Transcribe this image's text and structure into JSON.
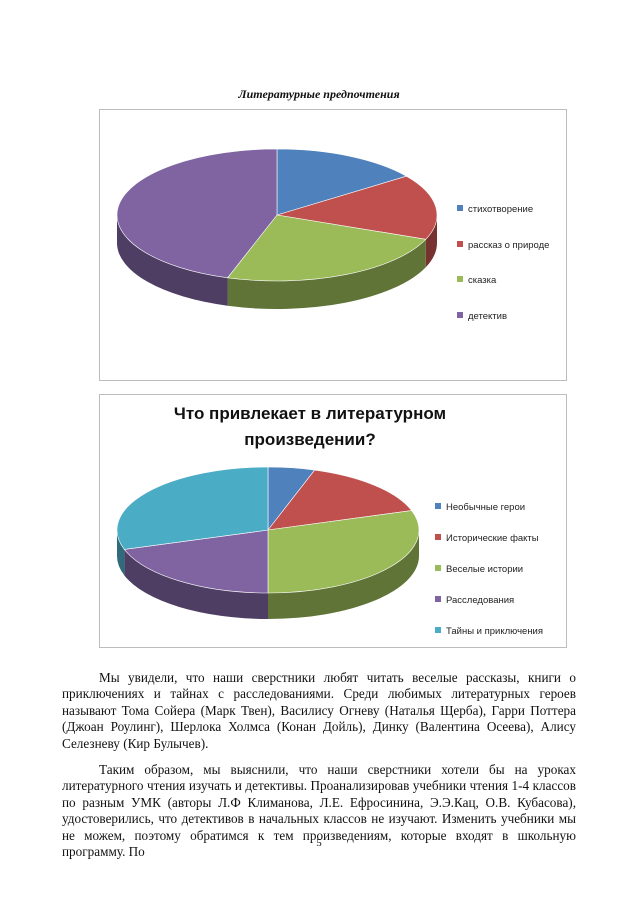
{
  "caption": "Литературные предпочтения",
  "chart_data": [
    {
      "type": "pie",
      "title": "",
      "categories": [
        "стихотворение",
        "рассказ о природе",
        "сказка",
        "детектив"
      ],
      "values": [
        15,
        16,
        24,
        45
      ],
      "colors": [
        "#4f81bd",
        "#c0504d",
        "#9bbb59",
        "#8064a2"
      ],
      "legend": "right"
    },
    {
      "type": "pie",
      "title": "Что привлекает в литературном произведении?",
      "categories": [
        "Необычные герои",
        "Исторические факты",
        "Веселые истории",
        "Расследования",
        "Тайны и приключения"
      ],
      "values": [
        5,
        15,
        30,
        20,
        30
      ],
      "colors": [
        "#4f81bd",
        "#c0504d",
        "#9bbb59",
        "#8064a2",
        "#4bacc6"
      ],
      "legend": "right"
    }
  ],
  "paragraphs": [
    "Мы увидели, что наши сверстники любят читать веселые рассказы, книги о приключениях и тайнах с расследованиями. Среди любимых литературных героев называют Тома Сойера (Марк Твен), Василису Огневу (Наталья Щерба), Гарри Поттера (Джоан Роулинг), Шерлока Холмса (Конан Дойль), Динку (Валентина Осеева),  Алису Селезневу (Кир Булычев).",
    "Таким образом, мы выяснили, что наши сверстники хотели бы на уроках литературного чтения изучать и детективы. Проанализировав учебники чтения 1-4 классов по разным УМК (авторы Л.Ф Климанова, Л.Е. Ефросинина, Э.Э.Кац, О.В. Кубасова), удостоверились, что детективов в начальных классов не изучают. Изменить учебники мы не можем, поэтому обратимся к тем произведениям, которые входят в школьную программу. По"
  ],
  "page_number": "5"
}
